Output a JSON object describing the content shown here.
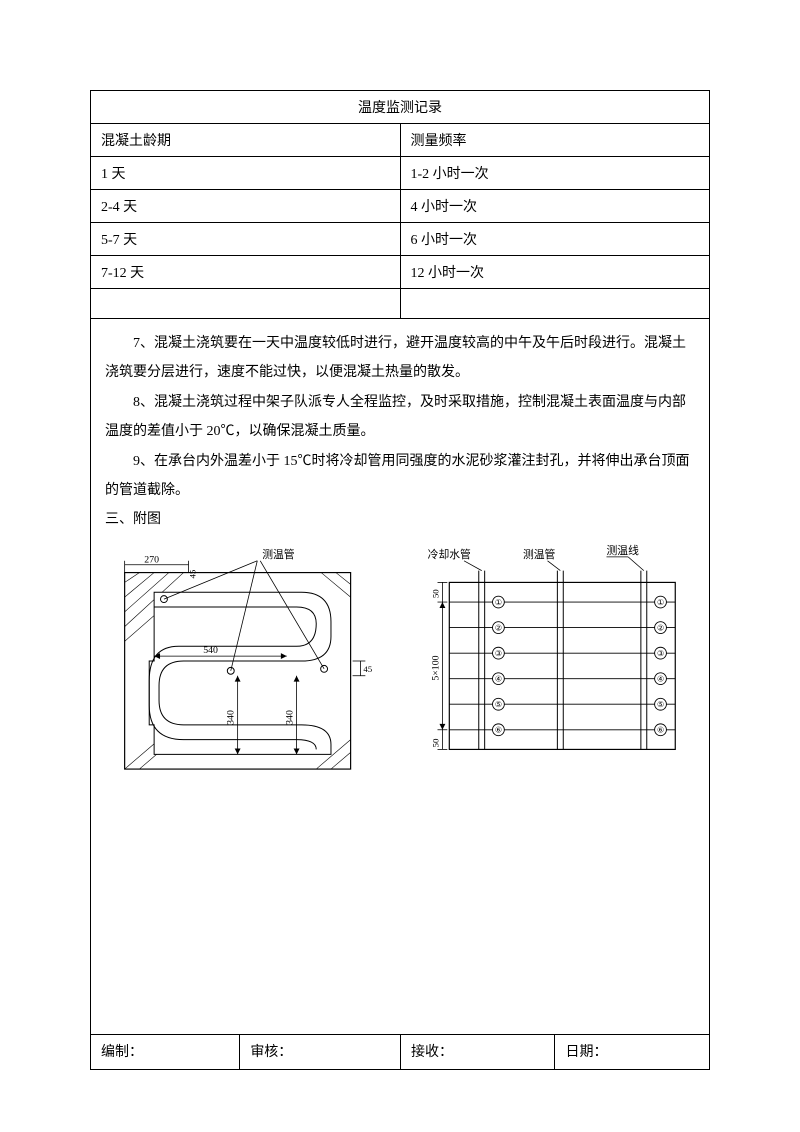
{
  "table": {
    "title": "温度监测记录",
    "headers": [
      "混凝土龄期",
      "测量频率"
    ],
    "rows": [
      [
        "1 天",
        "1-2 小时一次"
      ],
      [
        "2-4 天",
        "4 小时一次"
      ],
      [
        "5-7 天",
        "6 小时一次"
      ],
      [
        "7-12 天",
        "12 小时一次"
      ],
      [
        "",
        ""
      ]
    ]
  },
  "paragraphs": {
    "p7": "7、混凝土浇筑要在一天中温度较低时进行，避开温度较高的中午及午后时段进行。混凝土浇筑要分层进行，速度不能过快，以便混凝土热量的散发。",
    "p8": "8、混凝土浇筑过程中架子队派专人全程监控，及时采取措施，控制混凝土表面温度与内部温度的差值小于 20℃，以确保混凝土质量。",
    "p9": "9、在承台内外温差小于 15℃时将冷却管用同强度的水泥砂浆灌注封孔，并将伸出承台顶面的管道截除。",
    "section3": "三、附图"
  },
  "diagram1": {
    "labels": {
      "pipe": "测温管",
      "d270": "270",
      "d540": "540",
      "d45t": "45",
      "d45r": "45",
      "d340a": "340",
      "d340b": "340"
    }
  },
  "diagram2": {
    "labels": {
      "cool": "冷却水管",
      "pipe": "测温管",
      "line": "测温线",
      "d50t": "50",
      "d5x100": "5×100",
      "d50b": "50"
    },
    "row_marks": [
      "①",
      "②",
      "③",
      "④",
      "⑤",
      "⑥"
    ]
  },
  "footer": {
    "made": "编制：",
    "review": "审核：",
    "receive": "接收：",
    "date": "日期："
  },
  "style": {
    "stroke": "#000000",
    "stroke_width": 1,
    "fill": "#ffffff",
    "font_small": 10,
    "font_label": 11
  }
}
